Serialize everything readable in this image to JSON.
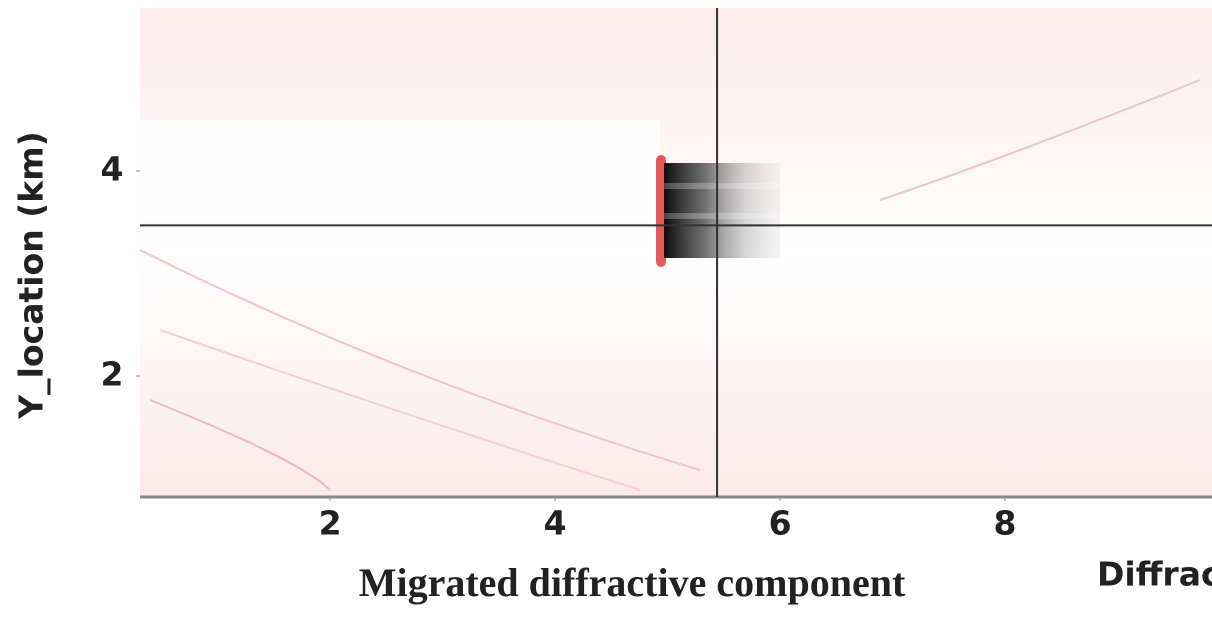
{
  "chart_data": {
    "type": "image",
    "title": "Migrated diffractive component",
    "y_label": "Y_location (km)",
    "annotation": "Diffrac",
    "xlim": [
      0.31,
      9.84
    ],
    "ylim": [
      0.82,
      5.59
    ],
    "xticks": [
      2,
      4,
      6,
      8
    ],
    "yticks": [
      2,
      4
    ],
    "crosshair": {
      "x": 5.44,
      "y": 3.47,
      "color": "#333333"
    }
  }
}
